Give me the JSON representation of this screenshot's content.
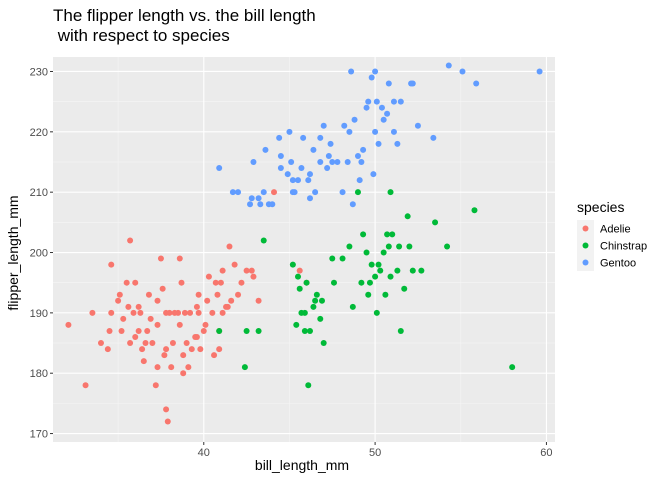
{
  "chart_data": {
    "type": "scatter",
    "title": "The flipper length vs. the bill length\n with respect to species",
    "xlabel": "bill_length_mm",
    "ylabel": "flipper_length_mm",
    "xlim": [
      31.2,
      60.5
    ],
    "ylim": [
      168.6,
      232.4
    ],
    "x_ticks": [
      40,
      50,
      60
    ],
    "y_ticks": [
      170,
      180,
      190,
      200,
      210,
      220,
      230
    ],
    "grid": true,
    "legend": {
      "title": "species",
      "position": "right"
    },
    "series": [
      {
        "name": "Adelie",
        "color": "#F8766D",
        "points": [
          [
            32.1,
            188
          ],
          [
            33.1,
            178
          ],
          [
            33.5,
            190
          ],
          [
            34.0,
            185
          ],
          [
            34.4,
            184
          ],
          [
            34.5,
            187
          ],
          [
            34.6,
            190
          ],
          [
            34.6,
            198
          ],
          [
            35.0,
            192
          ],
          [
            35.1,
            193
          ],
          [
            35.2,
            187
          ],
          [
            35.3,
            189
          ],
          [
            35.5,
            195
          ],
          [
            35.6,
            191
          ],
          [
            35.7,
            185
          ],
          [
            35.9,
            190
          ],
          [
            36.0,
            186
          ],
          [
            36.0,
            195
          ],
          [
            36.2,
            187
          ],
          [
            36.3,
            190
          ],
          [
            36.4,
            184
          ],
          [
            36.5,
            182
          ],
          [
            36.6,
            185
          ],
          [
            36.7,
            187
          ],
          [
            36.8,
            193
          ],
          [
            36.9,
            189
          ],
          [
            37.0,
            185
          ],
          [
            37.2,
            178
          ],
          [
            37.3,
            181
          ],
          [
            37.3,
            188
          ],
          [
            37.5,
            199
          ],
          [
            37.6,
            194
          ],
          [
            37.7,
            183
          ],
          [
            37.8,
            174
          ],
          [
            37.8,
            184
          ],
          [
            37.9,
            172
          ],
          [
            38.0,
            190
          ],
          [
            38.1,
            181
          ],
          [
            38.2,
            185
          ],
          [
            38.3,
            190
          ],
          [
            38.5,
            190
          ],
          [
            38.6,
            188
          ],
          [
            38.7,
            195
          ],
          [
            38.8,
            183
          ],
          [
            38.9,
            190
          ],
          [
            39.0,
            185
          ],
          [
            39.1,
            181
          ],
          [
            39.2,
            190
          ],
          [
            39.3,
            184
          ],
          [
            39.5,
            186
          ],
          [
            39.6,
            191
          ],
          [
            39.7,
            190
          ],
          [
            39.8,
            184
          ],
          [
            40.0,
            187
          ],
          [
            40.1,
            188
          ],
          [
            40.2,
            192
          ],
          [
            40.3,
            196
          ],
          [
            40.5,
            190
          ],
          [
            40.6,
            183
          ],
          [
            40.7,
            195
          ],
          [
            40.8,
            193
          ],
          [
            40.9,
            184
          ],
          [
            41.0,
            195
          ],
          [
            41.1,
            190
          ],
          [
            41.3,
            191
          ],
          [
            41.4,
            191
          ],
          [
            41.5,
            201
          ],
          [
            41.6,
            192
          ],
          [
            41.8,
            198
          ],
          [
            42.0,
            193
          ],
          [
            42.2,
            195
          ],
          [
            42.5,
            197
          ],
          [
            42.8,
            197
          ],
          [
            42.9,
            196
          ],
          [
            43.2,
            192
          ],
          [
            44.1,
            210
          ],
          [
            45.6,
            197
          ],
          [
            46.0,
            195
          ],
          [
            38.6,
            199
          ],
          [
            37.8,
            190
          ],
          [
            39.6,
            186
          ],
          [
            40.9,
            187
          ],
          [
            36.2,
            191
          ],
          [
            37.3,
            192
          ],
          [
            35.7,
            202
          ],
          [
            41.1,
            197
          ],
          [
            38.8,
            180
          ],
          [
            39.7,
            193
          ]
        ]
      },
      {
        "name": "Chinstrap",
        "color": "#00BA38",
        "points": [
          [
            40.9,
            187
          ],
          [
            42.4,
            181
          ],
          [
            42.5,
            187
          ],
          [
            43.2,
            187
          ],
          [
            43.5,
            202
          ],
          [
            45.2,
            198
          ],
          [
            45.4,
            188
          ],
          [
            45.5,
            196
          ],
          [
            45.6,
            194
          ],
          [
            45.7,
            190
          ],
          [
            45.9,
            190
          ],
          [
            46.0,
            195
          ],
          [
            46.1,
            178
          ],
          [
            46.2,
            187
          ],
          [
            46.4,
            191
          ],
          [
            46.6,
            193
          ],
          [
            46.8,
            189
          ],
          [
            46.9,
            192
          ],
          [
            47.0,
            185
          ],
          [
            47.5,
            199
          ],
          [
            47.6,
            195
          ],
          [
            48.1,
            199
          ],
          [
            48.5,
            201
          ],
          [
            48.7,
            191
          ],
          [
            49.0,
            210
          ],
          [
            49.2,
            195
          ],
          [
            49.3,
            203
          ],
          [
            49.5,
            200
          ],
          [
            49.7,
            195
          ],
          [
            49.8,
            198
          ],
          [
            50.0,
            196
          ],
          [
            50.1,
            190
          ],
          [
            50.2,
            198
          ],
          [
            50.3,
            197
          ],
          [
            50.5,
            200
          ],
          [
            50.6,
            193
          ],
          [
            50.7,
            203
          ],
          [
            50.8,
            201
          ],
          [
            50.9,
            196
          ],
          [
            51.0,
            203
          ],
          [
            51.3,
            197
          ],
          [
            51.4,
            201
          ],
          [
            51.5,
            187
          ],
          [
            51.7,
            194
          ],
          [
            51.9,
            206
          ],
          [
            52.0,
            201
          ],
          [
            52.2,
            197
          ],
          [
            52.7,
            197
          ],
          [
            53.5,
            205
          ],
          [
            54.2,
            201
          ],
          [
            55.8,
            207
          ],
          [
            58.0,
            181
          ],
          [
            46.5,
            192
          ],
          [
            45.9,
            187
          ],
          [
            49.6,
            193
          ],
          [
            50.9,
            210
          ]
        ]
      },
      {
        "name": "Gentoo",
        "color": "#619CFF",
        "points": [
          [
            40.9,
            214
          ],
          [
            41.7,
            210
          ],
          [
            42.0,
            210
          ],
          [
            42.7,
            208
          ],
          [
            42.8,
            209
          ],
          [
            42.9,
            215
          ],
          [
            43.2,
            209
          ],
          [
            43.3,
            208
          ],
          [
            43.5,
            210
          ],
          [
            43.6,
            217
          ],
          [
            43.8,
            208
          ],
          [
            44.0,
            208
          ],
          [
            44.4,
            219
          ],
          [
            44.5,
            214
          ],
          [
            44.9,
            213
          ],
          [
            45.0,
            220
          ],
          [
            45.1,
            215
          ],
          [
            45.2,
            212
          ],
          [
            45.3,
            210
          ],
          [
            45.5,
            212
          ],
          [
            45.7,
            214
          ],
          [
            45.8,
            219
          ],
          [
            46.1,
            212
          ],
          [
            46.2,
            213
          ],
          [
            46.4,
            217
          ],
          [
            46.5,
            210
          ],
          [
            46.8,
            215
          ],
          [
            47.2,
            214
          ],
          [
            47.3,
            216
          ],
          [
            47.4,
            218
          ],
          [
            47.5,
            215
          ],
          [
            47.8,
            215
          ],
          [
            48.1,
            210
          ],
          [
            48.2,
            221
          ],
          [
            48.4,
            215
          ],
          [
            48.5,
            220
          ],
          [
            48.7,
            208
          ],
          [
            48.8,
            222
          ],
          [
            49.0,
            216
          ],
          [
            49.1,
            212
          ],
          [
            49.3,
            217
          ],
          [
            49.5,
            224
          ],
          [
            49.6,
            225
          ],
          [
            49.8,
            229
          ],
          [
            49.9,
            213
          ],
          [
            50.0,
            220
          ],
          [
            50.1,
            225
          ],
          [
            50.2,
            218
          ],
          [
            50.4,
            224
          ],
          [
            50.5,
            222
          ],
          [
            50.7,
            223
          ],
          [
            50.8,
            228
          ],
          [
            51.1,
            220
          ],
          [
            51.3,
            218
          ],
          [
            51.5,
            225
          ],
          [
            52.1,
            228
          ],
          [
            52.2,
            228
          ],
          [
            52.5,
            221
          ],
          [
            53.4,
            219
          ],
          [
            54.3,
            231
          ],
          [
            55.1,
            230
          ],
          [
            55.9,
            228
          ],
          [
            59.6,
            230
          ],
          [
            46.8,
            219
          ],
          [
            47.0,
            221
          ],
          [
            48.6,
            230
          ],
          [
            49.2,
            215
          ],
          [
            50.0,
            230
          ],
          [
            51.1,
            225
          ],
          [
            45.2,
            210
          ],
          [
            44.5,
            216
          ],
          [
            46.2,
            209
          ]
        ]
      }
    ]
  }
}
